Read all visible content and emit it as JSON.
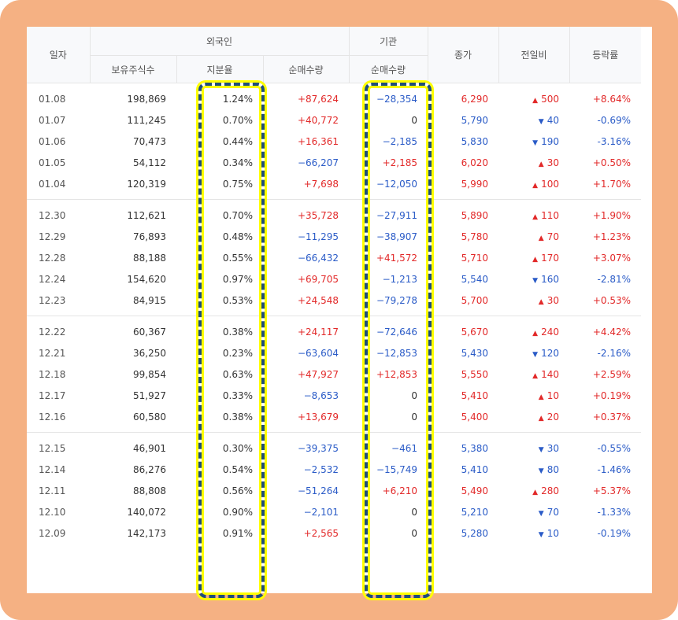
{
  "header": {
    "date": "일자",
    "foreign": "외국인",
    "institution": "기관",
    "close": "종가",
    "change": "전일비",
    "rate": "등락률",
    "holdings": "보유주식수",
    "ratio": "지분율",
    "foreign_net": "순매수량",
    "inst_net": "순매수량"
  },
  "colors": {
    "up": "#e22929",
    "down": "#2a5bc7",
    "frame": "#f5b183",
    "highlight_border": "#1f4e79",
    "highlight_glow": "#ffff00"
  },
  "groups": [
    [
      {
        "date": "01.08",
        "holdings": "198,869",
        "ratio": "1.24%",
        "foreign_net": "+87,624",
        "foreign_dir": "up",
        "inst_net": "−28,354",
        "inst_dir": "down",
        "close": "6,290",
        "close_dir": "up",
        "change": "500",
        "change_dir": "up",
        "rate": "+8.64%",
        "rate_dir": "up"
      },
      {
        "date": "01.07",
        "holdings": "111,245",
        "ratio": "0.70%",
        "foreign_net": "+40,772",
        "foreign_dir": "up",
        "inst_net": "0",
        "inst_dir": "neutral",
        "close": "5,790",
        "close_dir": "down",
        "change": "40",
        "change_dir": "down",
        "rate": "-0.69%",
        "rate_dir": "down"
      },
      {
        "date": "01.06",
        "holdings": "70,473",
        "ratio": "0.44%",
        "foreign_net": "+16,361",
        "foreign_dir": "up",
        "inst_net": "−2,185",
        "inst_dir": "down",
        "close": "5,830",
        "close_dir": "down",
        "change": "190",
        "change_dir": "down",
        "rate": "-3.16%",
        "rate_dir": "down"
      },
      {
        "date": "01.05",
        "holdings": "54,112",
        "ratio": "0.34%",
        "foreign_net": "−66,207",
        "foreign_dir": "down",
        "inst_net": "+2,185",
        "inst_dir": "up",
        "close": "6,020",
        "close_dir": "up",
        "change": "30",
        "change_dir": "up",
        "rate": "+0.50%",
        "rate_dir": "up"
      },
      {
        "date": "01.04",
        "holdings": "120,319",
        "ratio": "0.75%",
        "foreign_net": "+7,698",
        "foreign_dir": "up",
        "inst_net": "−12,050",
        "inst_dir": "down",
        "close": "5,990",
        "close_dir": "up",
        "change": "100",
        "change_dir": "up",
        "rate": "+1.70%",
        "rate_dir": "up"
      }
    ],
    [
      {
        "date": "12.30",
        "holdings": "112,621",
        "ratio": "0.70%",
        "foreign_net": "+35,728",
        "foreign_dir": "up",
        "inst_net": "−27,911",
        "inst_dir": "down",
        "close": "5,890",
        "close_dir": "up",
        "change": "110",
        "change_dir": "up",
        "rate": "+1.90%",
        "rate_dir": "up"
      },
      {
        "date": "12.29",
        "holdings": "76,893",
        "ratio": "0.48%",
        "foreign_net": "−11,295",
        "foreign_dir": "down",
        "inst_net": "−38,907",
        "inst_dir": "down",
        "close": "5,780",
        "close_dir": "up",
        "change": "70",
        "change_dir": "up",
        "rate": "+1.23%",
        "rate_dir": "up"
      },
      {
        "date": "12.28",
        "holdings": "88,188",
        "ratio": "0.55%",
        "foreign_net": "−66,432",
        "foreign_dir": "down",
        "inst_net": "+41,572",
        "inst_dir": "up",
        "close": "5,710",
        "close_dir": "up",
        "change": "170",
        "change_dir": "up",
        "rate": "+3.07%",
        "rate_dir": "up"
      },
      {
        "date": "12.24",
        "holdings": "154,620",
        "ratio": "0.97%",
        "foreign_net": "+69,705",
        "foreign_dir": "up",
        "inst_net": "−1,213",
        "inst_dir": "down",
        "close": "5,540",
        "close_dir": "down",
        "change": "160",
        "change_dir": "down",
        "rate": "-2.81%",
        "rate_dir": "down"
      },
      {
        "date": "12.23",
        "holdings": "84,915",
        "ratio": "0.53%",
        "foreign_net": "+24,548",
        "foreign_dir": "up",
        "inst_net": "−79,278",
        "inst_dir": "down",
        "close": "5,700",
        "close_dir": "up",
        "change": "30",
        "change_dir": "up",
        "rate": "+0.53%",
        "rate_dir": "up"
      }
    ],
    [
      {
        "date": "12.22",
        "holdings": "60,367",
        "ratio": "0.38%",
        "foreign_net": "+24,117",
        "foreign_dir": "up",
        "inst_net": "−72,646",
        "inst_dir": "down",
        "close": "5,670",
        "close_dir": "up",
        "change": "240",
        "change_dir": "up",
        "rate": "+4.42%",
        "rate_dir": "up"
      },
      {
        "date": "12.21",
        "holdings": "36,250",
        "ratio": "0.23%",
        "foreign_net": "−63,604",
        "foreign_dir": "down",
        "inst_net": "−12,853",
        "inst_dir": "down",
        "close": "5,430",
        "close_dir": "down",
        "change": "120",
        "change_dir": "down",
        "rate": "-2.16%",
        "rate_dir": "down"
      },
      {
        "date": "12.18",
        "holdings": "99,854",
        "ratio": "0.63%",
        "foreign_net": "+47,927",
        "foreign_dir": "up",
        "inst_net": "+12,853",
        "inst_dir": "up",
        "close": "5,550",
        "close_dir": "up",
        "change": "140",
        "change_dir": "up",
        "rate": "+2.59%",
        "rate_dir": "up"
      },
      {
        "date": "12.17",
        "holdings": "51,927",
        "ratio": "0.33%",
        "foreign_net": "−8,653",
        "foreign_dir": "down",
        "inst_net": "0",
        "inst_dir": "neutral",
        "close": "5,410",
        "close_dir": "up",
        "change": "10",
        "change_dir": "up",
        "rate": "+0.19%",
        "rate_dir": "up"
      },
      {
        "date": "12.16",
        "holdings": "60,580",
        "ratio": "0.38%",
        "foreign_net": "+13,679",
        "foreign_dir": "up",
        "inst_net": "0",
        "inst_dir": "neutral",
        "close": "5,400",
        "close_dir": "up",
        "change": "20",
        "change_dir": "up",
        "rate": "+0.37%",
        "rate_dir": "up"
      }
    ],
    [
      {
        "date": "12.15",
        "holdings": "46,901",
        "ratio": "0.30%",
        "foreign_net": "−39,375",
        "foreign_dir": "down",
        "inst_net": "−461",
        "inst_dir": "down",
        "close": "5,380",
        "close_dir": "down",
        "change": "30",
        "change_dir": "down",
        "rate": "-0.55%",
        "rate_dir": "down"
      },
      {
        "date": "12.14",
        "holdings": "86,276",
        "ratio": "0.54%",
        "foreign_net": "−2,532",
        "foreign_dir": "down",
        "inst_net": "−15,749",
        "inst_dir": "down",
        "close": "5,410",
        "close_dir": "down",
        "change": "80",
        "change_dir": "down",
        "rate": "-1.46%",
        "rate_dir": "down"
      },
      {
        "date": "12.11",
        "holdings": "88,808",
        "ratio": "0.56%",
        "foreign_net": "−51,264",
        "foreign_dir": "down",
        "inst_net": "+6,210",
        "inst_dir": "up",
        "close": "5,490",
        "close_dir": "up",
        "change": "280",
        "change_dir": "up",
        "rate": "+5.37%",
        "rate_dir": "up"
      },
      {
        "date": "12.10",
        "holdings": "140,072",
        "ratio": "0.90%",
        "foreign_net": "−2,101",
        "foreign_dir": "down",
        "inst_net": "0",
        "inst_dir": "neutral",
        "close": "5,210",
        "close_dir": "down",
        "change": "70",
        "change_dir": "down",
        "rate": "-1.33%",
        "rate_dir": "down"
      },
      {
        "date": "12.09",
        "holdings": "142,173",
        "ratio": "0.91%",
        "foreign_net": "+2,565",
        "foreign_dir": "up",
        "inst_net": "0",
        "inst_dir": "neutral",
        "close": "5,280",
        "close_dir": "down",
        "change": "10",
        "change_dir": "down",
        "rate": "-0.19%",
        "rate_dir": "down"
      }
    ]
  ]
}
